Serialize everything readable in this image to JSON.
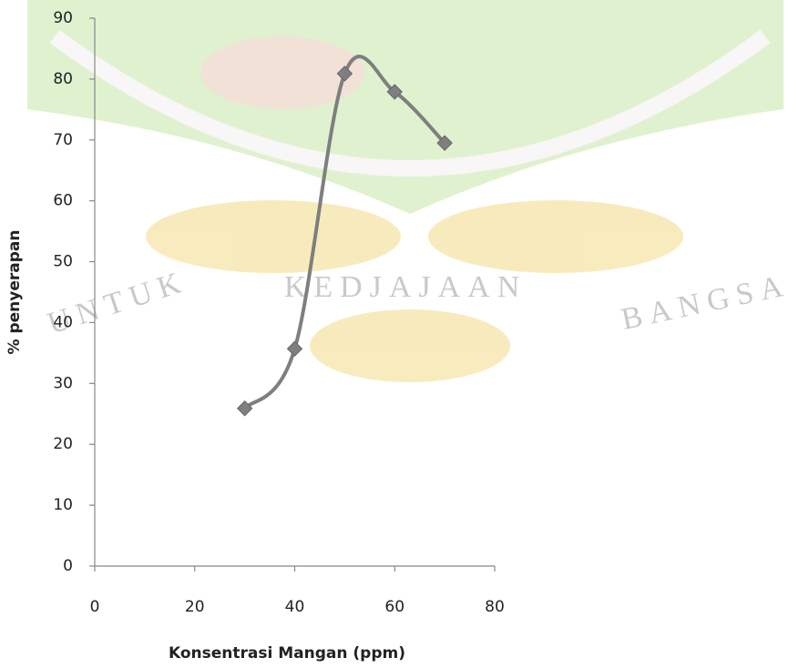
{
  "chart_data": {
    "type": "scatter",
    "smooth": true,
    "xlabel": "Konsentrasi Mangan (ppm)",
    "ylabel": "% penyerapan",
    "x": [
      30,
      40,
      50,
      60,
      70
    ],
    "series": [
      {
        "color": "#7f7f7f",
        "values": [
          25.9,
          35.7,
          80.9,
          77.9,
          69.5
        ]
      }
    ],
    "xlim": [
      0,
      80
    ],
    "xticks": [
      0,
      20,
      40,
      60,
      80
    ],
    "ylim": [
      0,
      90
    ],
    "yticks": [
      0,
      10,
      20,
      30,
      40,
      50,
      60,
      70,
      80,
      90
    ],
    "grid": false,
    "watermark": [
      "UNTUK",
      "KEDJAJAAN",
      "BANGSA"
    ]
  }
}
